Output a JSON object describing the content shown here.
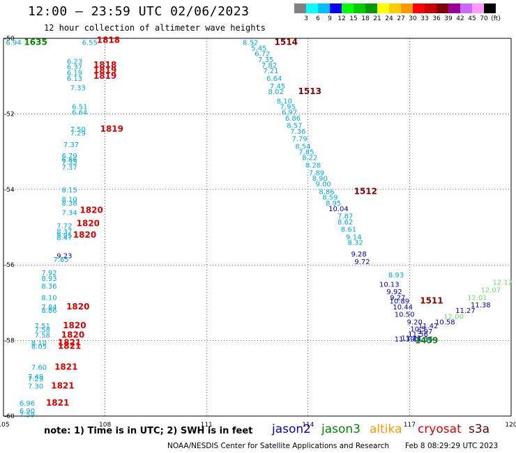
{
  "header": {
    "title": "12:00 — 23:59 UTC 02/06/2023",
    "subtitle": "12 hour collection of altimeter wave heights"
  },
  "legend": {
    "colors": [
      "#808080",
      "#00ffff",
      "#00bfff",
      "#0000ff",
      "#00ff00",
      "#00cc00",
      "#009900",
      "#ffff00",
      "#ffcc00",
      "#ff9900",
      "#ff0000",
      "#cc0000",
      "#800000",
      "#990099",
      "#cc66ff",
      "#ff99ff",
      "#000000"
    ],
    "labels": [
      "3",
      "6",
      "9",
      "12",
      "15",
      "18",
      "21",
      "24",
      "27",
      "30",
      "33",
      "36",
      "39",
      "42",
      "45",
      "70",
      "(ft)"
    ]
  },
  "footer": {
    "note": "note:  1) Time is in UTC;  2) SWH is in feet",
    "satellites": [
      {
        "name": "jason2",
        "color": "#0000cc"
      },
      {
        "name": "jason3",
        "color": "#008800"
      },
      {
        "name": "altika",
        "color": "#ff9900"
      },
      {
        "name": "cryosat",
        "color": "#dd0000"
      },
      {
        "name": "s3a",
        "color": "#660000"
      }
    ],
    "credit": "NOAA/NESDIS Center for Satellite Applications and Research",
    "date_stamp": "Feb  8 08:29:29 UTC 2023"
  },
  "chart_data": {
    "type": "scatter",
    "title": "12:00 — 23:59 UTC 02/06/2023",
    "subtitle": "12 hour collection of altimeter wave heights",
    "xlim": [
      105,
      120
    ],
    "ylim": [
      -60,
      -50
    ],
    "x_ticks": [
      "105",
      "108",
      "111",
      "114",
      "117",
      "120"
    ],
    "y_ticks": [
      "-50",
      "-52",
      "-54",
      "-56",
      "-58",
      "-60"
    ],
    "grid": true,
    "series": [
      {
        "name": "light-blue values",
        "color": "#00aadd",
        "points": [
          {
            "x": 105.3,
            "y": -50.1,
            "label": "6.94"
          },
          {
            "x": 107.55,
            "y": -50.1,
            "label": "6.55"
          },
          {
            "x": 107.1,
            "y": -50.6,
            "label": "6.23"
          },
          {
            "x": 107.1,
            "y": -50.75,
            "label": "6.37"
          },
          {
            "x": 107.1,
            "y": -50.9,
            "label": "6.19"
          },
          {
            "x": 107.1,
            "y": -51.05,
            "label": "6.13"
          },
          {
            "x": 107.2,
            "y": -51.3,
            "label": "7.33"
          },
          {
            "x": 107.25,
            "y": -51.8,
            "label": "6.51"
          },
          {
            "x": 107.25,
            "y": -51.95,
            "label": "6.64"
          },
          {
            "x": 107.2,
            "y": -52.4,
            "label": "7.50"
          },
          {
            "x": 107.2,
            "y": -52.5,
            "label": "7.29"
          },
          {
            "x": 107.0,
            "y": -52.8,
            "label": "7.37"
          },
          {
            "x": 106.95,
            "y": -53.1,
            "label": "6.79"
          },
          {
            "x": 106.95,
            "y": -53.2,
            "label": "6.86"
          },
          {
            "x": 106.95,
            "y": -53.27,
            "label": "7.35"
          },
          {
            "x": 106.95,
            "y": -53.4,
            "label": "7.37"
          },
          {
            "x": 106.95,
            "y": -54.0,
            "label": "8.15"
          },
          {
            "x": 106.95,
            "y": -54.25,
            "label": "8.10"
          },
          {
            "x": 106.95,
            "y": -54.35,
            "label": "8.38"
          },
          {
            "x": 106.95,
            "y": -54.6,
            "label": "7.34"
          },
          {
            "x": 106.8,
            "y": -54.95,
            "label": "7.72"
          },
          {
            "x": 106.8,
            "y": -55.1,
            "label": "8.37"
          },
          {
            "x": 106.8,
            "y": -55.2,
            "label": "8.05"
          },
          {
            "x": 106.8,
            "y": -55.27,
            "label": "8.47"
          },
          {
            "x": 106.7,
            "y": -55.85,
            "label": "7.65"
          },
          {
            "x": 106.35,
            "y": -56.2,
            "label": "7.92"
          },
          {
            "x": 106.35,
            "y": -56.35,
            "label": "8.93"
          },
          {
            "x": 106.35,
            "y": -56.55,
            "label": "8.36"
          },
          {
            "x": 106.35,
            "y": -56.85,
            "label": "8.10"
          },
          {
            "x": 106.35,
            "y": -57.1,
            "label": "7.84"
          },
          {
            "x": 106.35,
            "y": -57.2,
            "label": "8.86"
          },
          {
            "x": 106.15,
            "y": -57.6,
            "label": "7.51"
          },
          {
            "x": 106.15,
            "y": -57.7,
            "label": "7.58"
          },
          {
            "x": 106.15,
            "y": -57.85,
            "label": "7.58"
          },
          {
            "x": 106.05,
            "y": -58.05,
            "label": "8.10"
          },
          {
            "x": 106.05,
            "y": -58.15,
            "label": "8.05"
          },
          {
            "x": 106.05,
            "y": -58.7,
            "label": "7.60"
          },
          {
            "x": 105.95,
            "y": -58.95,
            "label": "7.49"
          },
          {
            "x": 105.95,
            "y": -59.0,
            "label": "7.29"
          },
          {
            "x": 105.95,
            "y": -59.2,
            "label": "7.30"
          },
          {
            "x": 105.7,
            "y": -59.65,
            "label": "6.96"
          },
          {
            "x": 105.7,
            "y": -59.85,
            "label": "6.90"
          },
          {
            "x": 105.7,
            "y": -59.95,
            "label": "7.59"
          },
          {
            "x": 112.3,
            "y": -50.1,
            "label": "8.52"
          },
          {
            "x": 112.55,
            "y": -50.25,
            "label": "5.45"
          },
          {
            "x": 112.65,
            "y": -50.4,
            "label": "6.72"
          },
          {
            "x": 112.75,
            "y": -50.55,
            "label": "7.35"
          },
          {
            "x": 112.85,
            "y": -50.7,
            "label": "7.82"
          },
          {
            "x": 112.9,
            "y": -50.85,
            "label": "7.21"
          },
          {
            "x": 113.0,
            "y": -51.05,
            "label": "6.64"
          },
          {
            "x": 113.1,
            "y": -51.25,
            "label": "7.45"
          },
          {
            "x": 113.05,
            "y": -51.4,
            "label": "8.02"
          },
          {
            "x": 113.3,
            "y": -51.65,
            "label": "8.10"
          },
          {
            "x": 113.4,
            "y": -51.8,
            "label": "7.95"
          },
          {
            "x": 113.45,
            "y": -51.95,
            "label": "6.97"
          },
          {
            "x": 113.55,
            "y": -52.1,
            "label": "6.86"
          },
          {
            "x": 113.6,
            "y": -52.3,
            "label": "8.57"
          },
          {
            "x": 113.7,
            "y": -52.45,
            "label": "7.36"
          },
          {
            "x": 113.75,
            "y": -52.65,
            "label": "7.79"
          },
          {
            "x": 113.85,
            "y": -52.85,
            "label": "8.54"
          },
          {
            "x": 113.95,
            "y": -53.0,
            "label": "7.85"
          },
          {
            "x": 114.05,
            "y": -53.15,
            "label": "8.22"
          },
          {
            "x": 114.15,
            "y": -53.35,
            "label": "8.28"
          },
          {
            "x": 114.25,
            "y": -53.55,
            "label": "7.89"
          },
          {
            "x": 114.35,
            "y": -53.7,
            "label": "8.90"
          },
          {
            "x": 114.45,
            "y": -53.85,
            "label": "9.00"
          },
          {
            "x": 114.55,
            "y": -54.05,
            "label": "8.86"
          },
          {
            "x": 114.65,
            "y": -54.2,
            "label": "8.59"
          },
          {
            "x": 114.75,
            "y": -54.35,
            "label": "8.95"
          },
          {
            "x": 115.1,
            "y": -54.7,
            "label": "7.87"
          },
          {
            "x": 115.1,
            "y": -54.85,
            "label": "8.62"
          },
          {
            "x": 115.2,
            "y": -55.05,
            "label": "8.61"
          },
          {
            "x": 115.35,
            "y": -55.25,
            "label": "9.14"
          },
          {
            "x": 115.4,
            "y": -55.4,
            "label": "8.32"
          },
          {
            "x": 116.6,
            "y": -56.25,
            "label": "8.93"
          }
        ]
      },
      {
        "name": "blue values",
        "color": "#0000bb",
        "points": [
          {
            "x": 106.8,
            "y": -55.75,
            "label": "9.23"
          },
          {
            "x": 114.9,
            "y": -54.5,
            "label": "10.04"
          },
          {
            "x": 115.5,
            "y": -55.7,
            "label": "9.28"
          },
          {
            "x": 115.6,
            "y": -55.9,
            "label": "9.72"
          },
          {
            "x": 116.4,
            "y": -56.5,
            "label": "10.13"
          },
          {
            "x": 116.55,
            "y": -56.7,
            "label": "9.92"
          },
          {
            "x": 116.65,
            "y": -56.85,
            "label": "9.27"
          },
          {
            "x": 116.7,
            "y": -56.95,
            "label": "10.89"
          },
          {
            "x": 116.8,
            "y": -57.1,
            "label": "10.44"
          },
          {
            "x": 116.85,
            "y": -57.3,
            "label": "10.50"
          },
          {
            "x": 117.15,
            "y": -57.5,
            "label": "9.20"
          },
          {
            "x": 117.25,
            "y": -57.68,
            "label": "10.5"
          },
          {
            "x": 117.55,
            "y": -57.6,
            "label": "11.42"
          },
          {
            "x": 117.45,
            "y": -57.75,
            "label": "9.97"
          },
          {
            "x": 117.25,
            "y": -57.82,
            "label": "11.56"
          },
          {
            "x": 117.05,
            "y": -57.92,
            "label": "11.11"
          },
          {
            "x": 117.4,
            "y": -57.95,
            "label": "11.15"
          },
          {
            "x": 116.85,
            "y": -57.95,
            "label": "11.39"
          },
          {
            "x": 118.05,
            "y": -57.5,
            "label": "10.58"
          },
          {
            "x": 118.65,
            "y": -57.2,
            "label": "11.27"
          },
          {
            "x": 119.1,
            "y": -57.05,
            "label": "11.38"
          }
        ]
      },
      {
        "name": "light-green values",
        "color": "#66dd66",
        "points": [
          {
            "x": 118.3,
            "y": -57.35,
            "label": "12.00"
          },
          {
            "x": 119.0,
            "y": -56.85,
            "label": "12.01"
          },
          {
            "x": 119.4,
            "y": -56.65,
            "label": "12.07"
          },
          {
            "x": 119.75,
            "y": -56.45,
            "label": "12.12"
          }
        ]
      },
      {
        "name": "time labels",
        "color": "#dd0000",
        "points": [
          {
            "x": 108.1,
            "y": -50.05,
            "label": "1818"
          },
          {
            "x": 108.0,
            "y": -50.7,
            "label": "1818"
          },
          {
            "x": 108.0,
            "y": -50.85,
            "label": "1819"
          },
          {
            "x": 108.0,
            "y": -51.0,
            "label": "1819"
          },
          {
            "x": 108.2,
            "y": -52.4,
            "label": "1819"
          },
          {
            "x": 107.6,
            "y": -54.55,
            "label": "1820"
          },
          {
            "x": 107.5,
            "y": -54.9,
            "label": "1820"
          },
          {
            "x": 107.4,
            "y": -55.2,
            "label": "1820"
          },
          {
            "x": 107.2,
            "y": -57.1,
            "label": "1820"
          },
          {
            "x": 107.1,
            "y": -57.6,
            "label": "1820"
          },
          {
            "x": 107.05,
            "y": -57.85,
            "label": "1820"
          },
          {
            "x": 106.95,
            "y": -58.05,
            "label": "1821"
          },
          {
            "x": 106.95,
            "y": -58.15,
            "label": "1821"
          },
          {
            "x": 106.85,
            "y": -58.7,
            "label": "1821"
          },
          {
            "x": 106.75,
            "y": -59.2,
            "label": "1821"
          },
          {
            "x": 106.6,
            "y": -59.65,
            "label": "1821"
          }
        ]
      },
      {
        "name": "time labels dark",
        "color": "#880000",
        "points": [
          {
            "x": 113.35,
            "y": -50.1,
            "label": "1514"
          },
          {
            "x": 114.05,
            "y": -51.4,
            "label": "1513"
          },
          {
            "x": 115.7,
            "y": -54.05,
            "label": "1512"
          },
          {
            "x": 117.65,
            "y": -56.95,
            "label": "1511"
          }
        ]
      },
      {
        "name": "time labels green",
        "color": "#008800",
        "points": [
          {
            "x": 105.95,
            "y": -50.1,
            "label": "1635"
          },
          {
            "x": 117.5,
            "y": -58.0,
            "label": "1459"
          }
        ]
      }
    ]
  }
}
